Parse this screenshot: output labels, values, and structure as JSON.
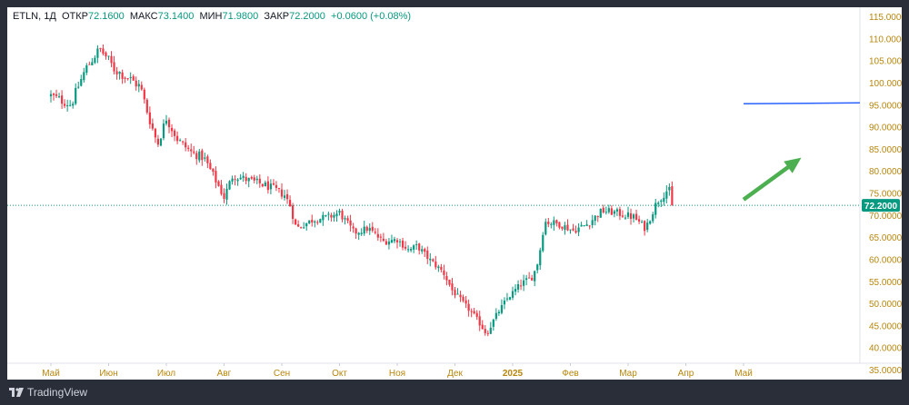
{
  "legend": {
    "symbol": "ETLN, 1Д",
    "open_label": "ОТКР",
    "open_value": "72.1600",
    "high_label": "МАКС",
    "high_value": "73.1400",
    "low_label": "МИН",
    "low_value": "71.9800",
    "close_label": "ЗАКР",
    "close_value": "72.2000",
    "change": "+0.0600 (+0.08%)"
  },
  "price_label": "72.2000",
  "branding": {
    "name": "TradingView"
  },
  "colors": {
    "up": "#089981",
    "down": "#f23645",
    "axis_text": "#b8860b",
    "price_line": "#089981",
    "hline": "#2962ff",
    "arrow": "#4caf50"
  },
  "chart_data": {
    "type": "candlestick",
    "symbol": "ETLN",
    "timeframe": "1Д",
    "y_ticks": [
      "115.0000",
      "110.0000",
      "105.0000",
      "100.0000",
      "95.0000",
      "90.0000",
      "85.0000",
      "80.0000",
      "75.0000",
      "70.0000",
      "65.0000",
      "60.0000",
      "55.0000",
      "50.0000",
      "45.0000",
      "40.0000",
      "35.0000"
    ],
    "ylim": [
      35,
      115
    ],
    "x_ticks": [
      "Май",
      "Июн",
      "Июл",
      "Авг",
      "Сен",
      "Окт",
      "Ноя",
      "Дек",
      "2025",
      "Фев",
      "Мар",
      "Апр",
      "Май"
    ],
    "last_price": 72.2,
    "horizontal_line": 95.3,
    "arrow": {
      "from": [
        12.0,
        73.5
      ],
      "to": [
        13.0,
        83.0
      ]
    },
    "anchors": [
      [
        0,
        97
      ],
      [
        0.35,
        95
      ],
      [
        0.5,
        100
      ],
      [
        0.6,
        103
      ],
      [
        0.75,
        106
      ],
      [
        0.85,
        107.5
      ],
      [
        0.95,
        106
      ],
      [
        1.1,
        103
      ],
      [
        1.35,
        101
      ],
      [
        1.55,
        99
      ],
      [
        1.7,
        92
      ],
      [
        1.85,
        86
      ],
      [
        2.0,
        92
      ],
      [
        2.2,
        87
      ],
      [
        2.45,
        84
      ],
      [
        2.65,
        83
      ],
      [
        2.85,
        78
      ],
      [
        3.0,
        74
      ],
      [
        3.15,
        79
      ],
      [
        3.4,
        78
      ],
      [
        3.65,
        77
      ],
      [
        3.85,
        76
      ],
      [
        4.05,
        74.5
      ],
      [
        4.15,
        72
      ],
      [
        4.25,
        67
      ],
      [
        4.55,
        69
      ],
      [
        4.8,
        69.5
      ],
      [
        5.0,
        70.5
      ],
      [
        5.25,
        66
      ],
      [
        5.5,
        67
      ],
      [
        5.75,
        64
      ],
      [
        6.0,
        64.5
      ],
      [
        6.2,
        62
      ],
      [
        6.35,
        63
      ],
      [
        6.55,
        60
      ],
      [
        6.8,
        57
      ],
      [
        6.95,
        53
      ],
      [
        7.15,
        50
      ],
      [
        7.35,
        47
      ],
      [
        7.55,
        43
      ],
      [
        7.7,
        47
      ],
      [
        7.9,
        51
      ],
      [
        8.15,
        54.5
      ],
      [
        8.35,
        56
      ],
      [
        8.45,
        60
      ],
      [
        8.55,
        68.5
      ],
      [
        8.8,
        68
      ],
      [
        9.05,
        66.5
      ],
      [
        9.3,
        68
      ],
      [
        9.55,
        71
      ],
      [
        9.8,
        70.5
      ],
      [
        10.1,
        69.5
      ],
      [
        10.3,
        67
      ],
      [
        10.5,
        73
      ],
      [
        10.7,
        76
      ],
      [
        10.8,
        72.2
      ]
    ]
  }
}
